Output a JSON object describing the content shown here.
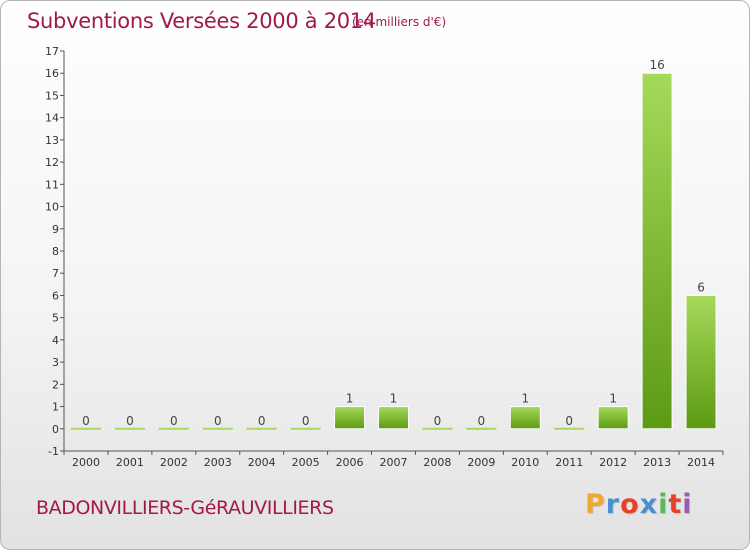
{
  "header": {
    "title": "Subventions Versées 2000 à 2014",
    "subtitle": "(en milliers d'€)"
  },
  "footer": {
    "commune": "BADONVILLIERS-GéRAUVILLIERS",
    "logo_letters": [
      "P",
      "r",
      "o",
      "x",
      "i",
      "t",
      "i"
    ],
    "logo_colors": [
      "#f0a830",
      "#4a8fd0",
      "#e8402a",
      "#4a8fd0",
      "#5cb85c",
      "#e8402a",
      "#9b59b6"
    ]
  },
  "chart_data": {
    "type": "bar",
    "title": "Subventions Versées 2000 à 2014",
    "subtitle": "(en milliers d'€)",
    "categories": [
      "2000",
      "2001",
      "2002",
      "2003",
      "2004",
      "2005",
      "2006",
      "2007",
      "2008",
      "2009",
      "2010",
      "2011",
      "2012",
      "2013",
      "2014"
    ],
    "values": [
      0,
      0,
      0,
      0,
      0,
      0,
      1,
      1,
      0,
      0,
      1,
      0,
      1,
      16,
      6
    ],
    "data_labels": [
      "0",
      "0",
      "0",
      "0",
      "0",
      "0",
      "1",
      "1",
      "0",
      "0",
      "1",
      "0",
      "1",
      "16",
      "6"
    ],
    "ylim": [
      -1,
      17
    ],
    "yticks": [
      -1,
      0,
      1,
      2,
      3,
      4,
      5,
      6,
      7,
      8,
      9,
      10,
      11,
      12,
      13,
      14,
      15,
      16,
      17
    ],
    "grid": false,
    "legend": "none",
    "colors": {
      "bar_light": "#a6d95a",
      "bar_dark": "#5c9a14",
      "title": "#a2184e",
      "axis": "#555555"
    }
  }
}
